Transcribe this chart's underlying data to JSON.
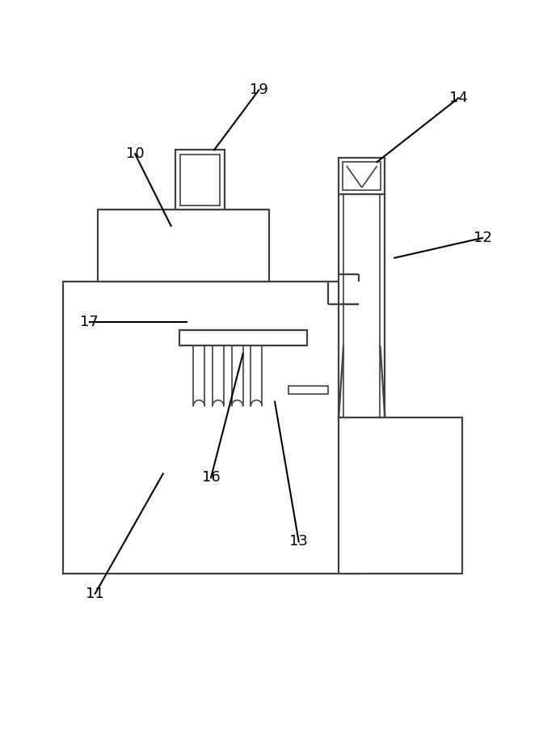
{
  "line_color": "#404040",
  "lw": 1.6,
  "lw_thin": 1.2,
  "bg_color": "#ffffff",
  "fig_width": 6.93,
  "fig_height": 9.27,
  "dpi": 100
}
